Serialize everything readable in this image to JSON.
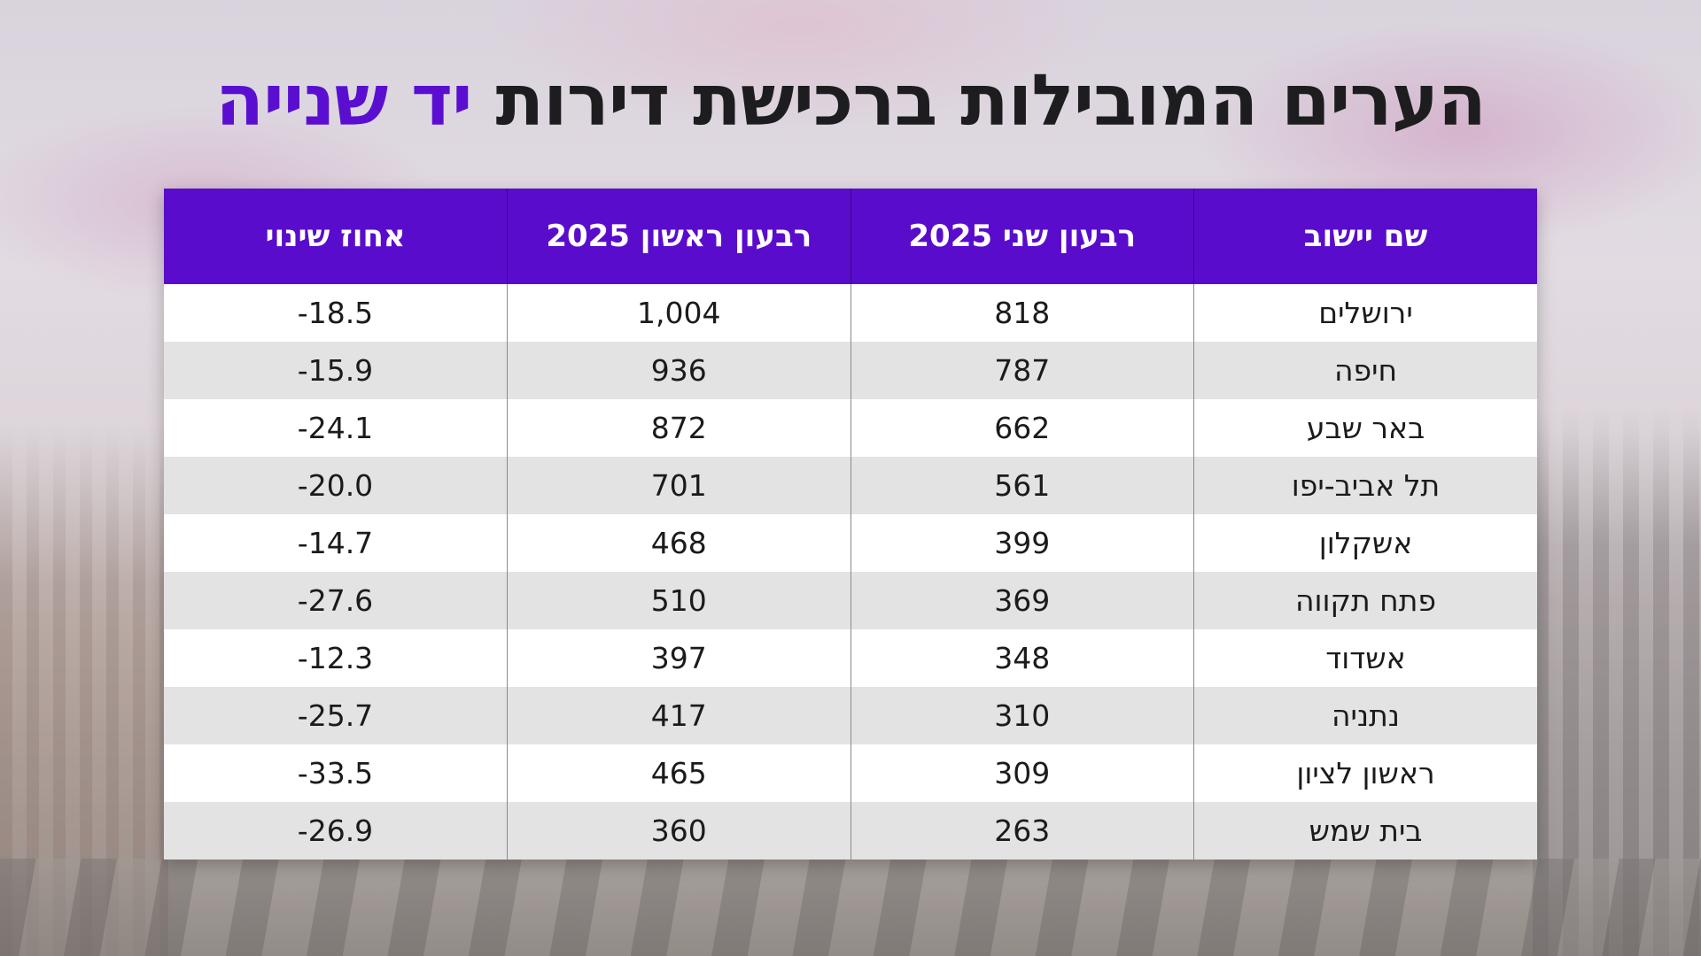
{
  "title": {
    "main": "הערים המובילות ברכישת דירות",
    "accent": "יד שנייה"
  },
  "table": {
    "headers": [
      "שם יישוב",
      "רבעון שני 2025",
      "רבעון ראשון 2025",
      "אחוז שינוי"
    ],
    "rows": [
      [
        "ירושלים",
        "818",
        "1,004",
        "-18.5"
      ],
      [
        "חיפה",
        "787",
        "936",
        "-15.9"
      ],
      [
        "באר שבע",
        "662",
        "872",
        "-24.1"
      ],
      [
        "תל אביב-יפו",
        "561",
        "701",
        "-20.0"
      ],
      [
        "אשקלון",
        "399",
        "468",
        "-14.7"
      ],
      [
        "פתח תקווה",
        "369",
        "510",
        "-27.6"
      ],
      [
        "אשדוד",
        "348",
        "397",
        "-12.3"
      ],
      [
        "נתניה",
        "310",
        "417",
        "-25.7"
      ],
      [
        "ראשון לציון",
        "309",
        "465",
        "-33.5"
      ],
      [
        "בית שמש",
        "263",
        "360",
        "-26.9"
      ]
    ]
  },
  "colors": {
    "accent": "#5a0fd0",
    "header_bg": "#5a0ccc",
    "row_alt": "#e3e3e3",
    "row": "#ffffff"
  }
}
